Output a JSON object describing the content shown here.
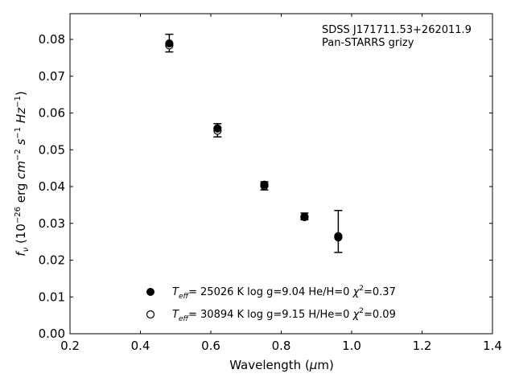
{
  "chart_data": {
    "type": "scatter",
    "title": "",
    "xlabel": "Wavelength (μm)",
    "ylabel": "f_ν (10^-26 erg cm^-2 s^-1 Hz^-1)",
    "xlim": [
      0.2,
      1.4
    ],
    "ylim": [
      0.0,
      0.087
    ],
    "xticks": [
      0.2,
      0.4,
      0.6,
      0.8,
      1.0,
      1.2,
      1.4
    ],
    "xtick_labels": [
      "0.2",
      "0.4",
      "0.6",
      "0.8",
      "1.0",
      "1.2",
      "1.4"
    ],
    "yticks": [
      0.0,
      0.01,
      0.02,
      0.03,
      0.04,
      0.05,
      0.06,
      0.07,
      0.08
    ],
    "ytick_labels": [
      "0.00",
      "0.01",
      "0.02",
      "0.03",
      "0.04",
      "0.05",
      "0.06",
      "0.07",
      "0.08"
    ],
    "grid": false,
    "annotations": [
      "SDSS J171711.53+262011.9",
      "Pan-STARRS grizy"
    ],
    "observed": {
      "x": [
        0.482,
        0.619,
        0.752,
        0.866,
        0.962
      ],
      "y": [
        0.079,
        0.0553,
        0.0402,
        0.0319,
        0.0278
      ],
      "yerr": [
        0.0024,
        0.0018,
        0.0011,
        0.0009,
        0.0057
      ]
    },
    "series": [
      {
        "name": "Teff= 25026 K  log g=9.04  He/H=0  χ2=0.37",
        "marker": "filled-circle",
        "x": [
          0.482,
          0.619,
          0.752,
          0.866,
          0.962
        ],
        "y": [
          0.0789,
          0.0558,
          0.0405,
          0.0318,
          0.0262
        ]
      },
      {
        "name": "Teff= 30894 K  log g=9.15  H/He=0  χ2=0.09",
        "marker": "open-circle",
        "x": [
          0.482,
          0.619,
          0.752,
          0.866,
          0.962
        ],
        "y": [
          0.0784,
          0.0552,
          0.0402,
          0.0317,
          0.0265
        ]
      }
    ],
    "legend_position": "bottom-center"
  }
}
